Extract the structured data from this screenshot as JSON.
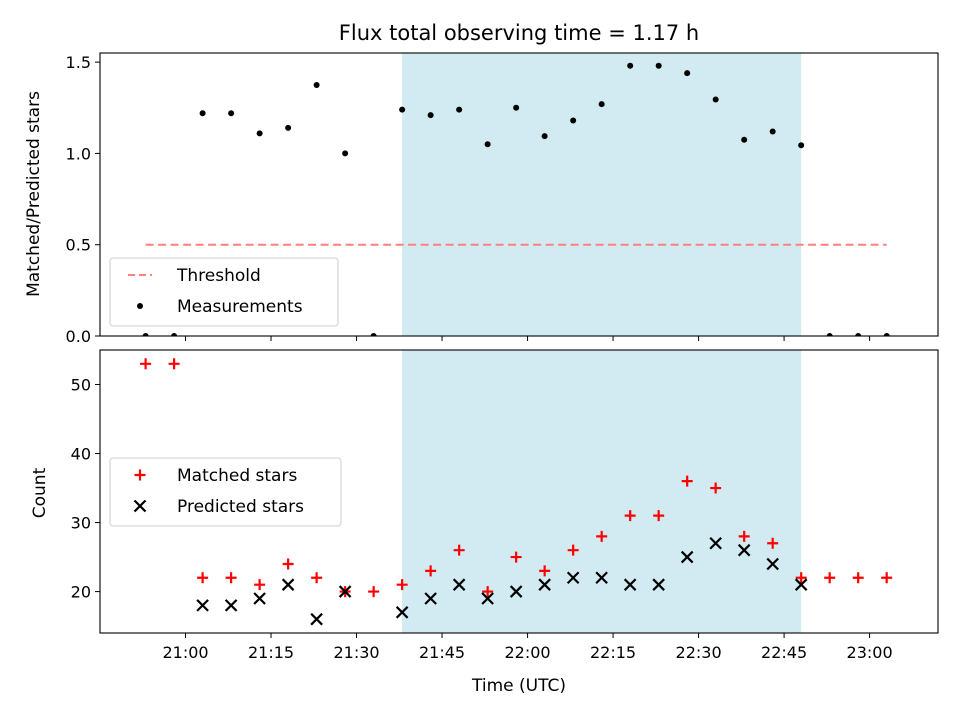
{
  "chart_data": [
    {
      "type": "scatter",
      "title": "Flux total observing time = 1.17 h",
      "xlabel": "",
      "ylabel": "Matched/Predicted stars",
      "ylim": [
        0,
        1.55
      ],
      "yticks": [
        "0.0",
        "0.5",
        "1.0",
        "1.5"
      ],
      "ytick_values": [
        0,
        0.5,
        1.0,
        1.5
      ],
      "x_range": [
        "20:45",
        "23:12"
      ],
      "grid": false,
      "legend_position": "lower-left",
      "shaded_interval": [
        "21:38",
        "22:48"
      ],
      "shade_color": "#add8e6",
      "series": [
        {
          "name": "Threshold",
          "style": "dashed-line",
          "color": "#ff7f7f",
          "x": [
            "20:53",
            "23:03"
          ],
          "y": [
            0.5,
            0.5
          ]
        },
        {
          "name": "Measurements",
          "style": "dot",
          "color": "#000000",
          "x": [
            "20:53",
            "20:58",
            "21:03",
            "21:08",
            "21:13",
            "21:18",
            "21:23",
            "21:28",
            "21:33",
            "21:38",
            "21:43",
            "21:48",
            "21:53",
            "21:58",
            "22:03",
            "22:08",
            "22:13",
            "22:18",
            "22:23",
            "22:28",
            "22:33",
            "22:38",
            "22:43",
            "22:48",
            "22:53",
            "22:58",
            "23:03"
          ],
          "y": [
            0,
            0,
            1.22,
            1.22,
            1.11,
            1.14,
            1.375,
            1.0,
            0,
            1.24,
            1.21,
            1.24,
            1.05,
            1.25,
            1.095,
            1.18,
            1.27,
            1.48,
            1.48,
            1.44,
            1.295,
            1.075,
            1.12,
            1.045,
            0,
            0,
            0
          ]
        }
      ]
    },
    {
      "type": "scatter",
      "title": "",
      "xlabel": "Time (UTC)",
      "ylabel": "Count",
      "ylim": [
        14,
        55
      ],
      "yticks": [
        "20",
        "30",
        "40",
        "50"
      ],
      "ytick_values": [
        20,
        30,
        40,
        50
      ],
      "xticks": [
        "21:00",
        "21:15",
        "21:30",
        "21:45",
        "22:00",
        "22:15",
        "22:30",
        "22:45",
        "23:00"
      ],
      "x_range": [
        "20:45",
        "23:12"
      ],
      "grid": false,
      "legend_position": "center-left",
      "shaded_interval": [
        "21:38",
        "22:48"
      ],
      "shade_color": "#add8e6",
      "series": [
        {
          "name": "Matched stars",
          "style": "plus",
          "color": "#ff0000",
          "x": [
            "20:53",
            "20:58",
            "21:03",
            "21:08",
            "21:13",
            "21:18",
            "21:23",
            "21:28",
            "21:33",
            "21:38",
            "21:43",
            "21:48",
            "21:53",
            "21:58",
            "22:03",
            "22:08",
            "22:13",
            "22:18",
            "22:23",
            "22:28",
            "22:33",
            "22:38",
            "22:43",
            "22:48",
            "22:53",
            "22:58",
            "23:03"
          ],
          "y": [
            53,
            53,
            22,
            22,
            21,
            24,
            22,
            20,
            20,
            21,
            23,
            26,
            20,
            25,
            23,
            26,
            28,
            31,
            31,
            36,
            35,
            28,
            27,
            22,
            22,
            22,
            22
          ]
        },
        {
          "name": "Predicted stars",
          "style": "x",
          "color": "#000000",
          "x": [
            "21:03",
            "21:08",
            "21:13",
            "21:18",
            "21:23",
            "21:28",
            "21:38",
            "21:43",
            "21:48",
            "21:53",
            "21:58",
            "22:03",
            "22:08",
            "22:13",
            "22:18",
            "22:23",
            "22:28",
            "22:33",
            "22:38",
            "22:43",
            "22:48"
          ],
          "y": [
            18,
            18,
            19,
            21,
            16,
            20,
            17,
            19,
            21,
            19,
            20,
            21,
            22,
            22,
            21,
            21,
            25,
            27,
            26,
            24,
            21
          ]
        }
      ]
    }
  ]
}
